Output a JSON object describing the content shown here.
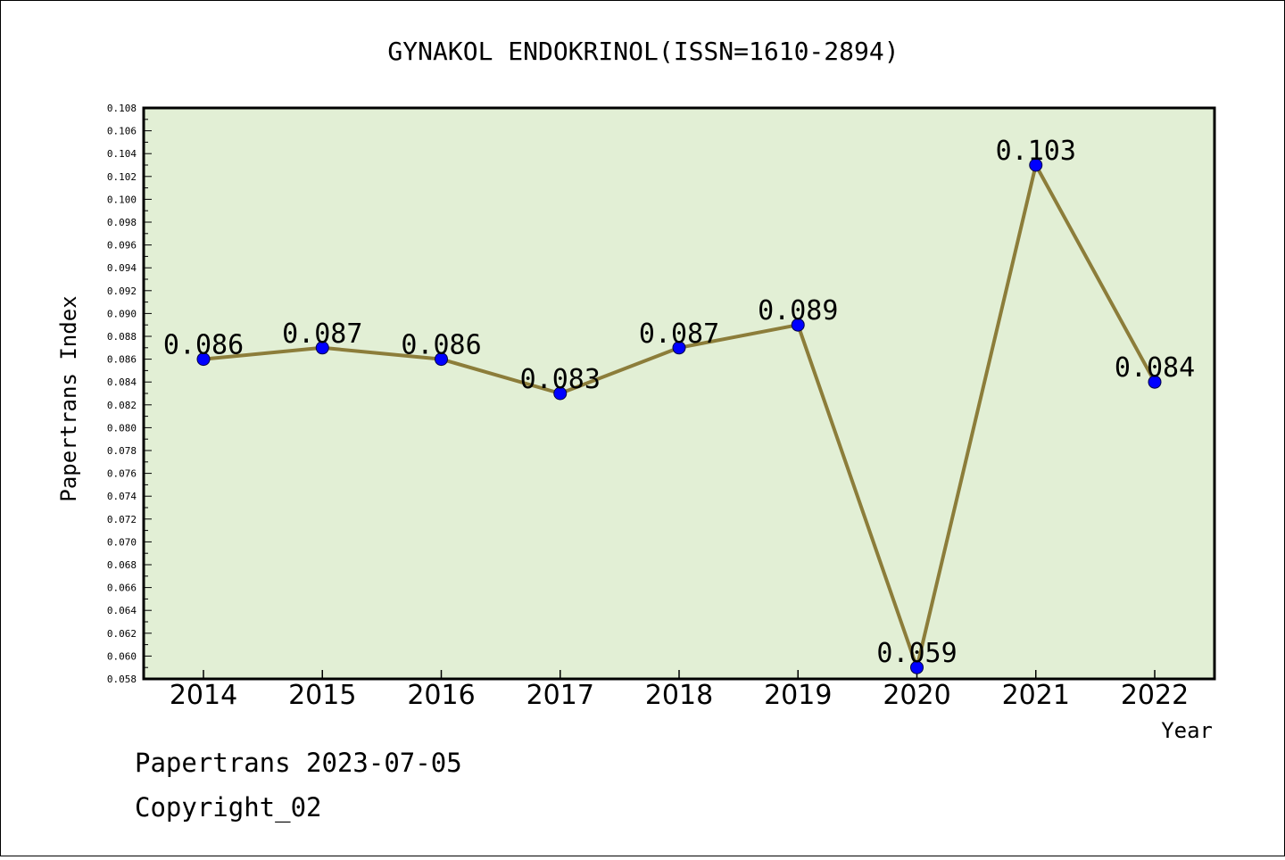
{
  "chart_data": {
    "type": "line",
    "title": "GYNAKOL ENDOKRINOL(ISSN=1610-2894)",
    "xlabel": "Year",
    "ylabel": "Papertrans Index",
    "categories": [
      "2014",
      "2015",
      "2016",
      "2017",
      "2018",
      "2019",
      "2020",
      "2021",
      "2022"
    ],
    "values": [
      0.086,
      0.087,
      0.086,
      0.083,
      0.087,
      0.089,
      0.059,
      0.103,
      0.084
    ],
    "data_labels": [
      "0.086",
      "0.087",
      "0.086",
      "0.083",
      "0.087",
      "0.089",
      "0.059",
      "0.103",
      "0.084"
    ],
    "ylim": [
      0.058,
      0.108
    ],
    "ytick_step": 0.002,
    "grid": false,
    "legend": "none",
    "line_color": "#8c7d3a",
    "marker_color": "#0000ff",
    "plot_background": "#e2efd5"
  },
  "footer": {
    "line1": "Papertrans 2023-07-05",
    "line2": "Copyright_02"
  }
}
